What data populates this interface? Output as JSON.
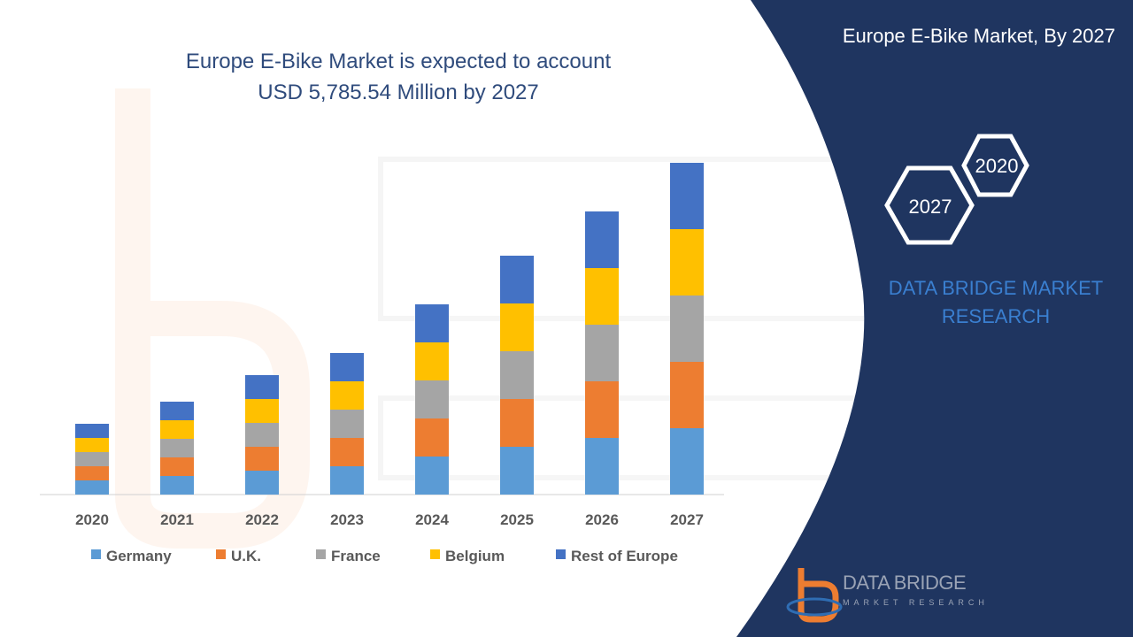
{
  "title_lines": [
    "Europe E-Bike Market is expected to account",
    "USD 5,785.54 Million by 2027"
  ],
  "panel": {
    "title": "Europe E-Bike Market, By 2027",
    "hex_labels": [
      "2020",
      "2027"
    ],
    "brand_lines": [
      "DATA BRIDGE MARKET",
      "RESEARCH"
    ]
  },
  "logo": {
    "name": "DATA BRIDGE",
    "sub": "MARKET RESEARCH"
  },
  "colors": {
    "panel_bg": "#1f3560",
    "Germany": "#5b9bd5",
    "U.K.": "#ed7d31",
    "France": "#a5a5a5",
    "Belgium": "#ffc000",
    "Rest of Europe": "#4472c4",
    "hex_stroke": "#ffffff",
    "brand_text": "#3a7fd0"
  },
  "chart_data": {
    "type": "bar",
    "stacked": true,
    "categories": [
      "2020",
      "2021",
      "2022",
      "2023",
      "2024",
      "2025",
      "2026",
      "2027"
    ],
    "series": [
      {
        "name": "Germany",
        "values": [
          16,
          21,
          27,
          32,
          43,
          54,
          64,
          75
        ]
      },
      {
        "name": "U.K.",
        "values": [
          16,
          21,
          27,
          32,
          43,
          54,
          64,
          75
        ]
      },
      {
        "name": "France",
        "values": [
          16,
          21,
          27,
          32,
          43,
          54,
          64,
          75
        ]
      },
      {
        "name": "Belgium",
        "values": [
          16,
          21,
          27,
          32,
          43,
          54,
          64,
          75
        ]
      },
      {
        "name": "Rest of Europe",
        "values": [
          16,
          21,
          27,
          32,
          43,
          54,
          64,
          75
        ]
      }
    ],
    "ylim": [
      0,
      375
    ],
    "title": "",
    "xlabel": "",
    "ylabel": "",
    "legend_position": "bottom",
    "grid": false
  }
}
